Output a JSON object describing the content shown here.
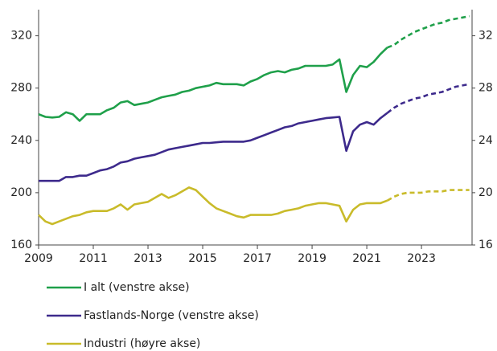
{
  "chart_data": {
    "type": "line",
    "x": [
      2009,
      2009.25,
      2009.5,
      2009.75,
      2010,
      2010.25,
      2010.5,
      2010.75,
      2011,
      2011.25,
      2011.5,
      2011.75,
      2012,
      2012.25,
      2012.5,
      2012.75,
      2013,
      2013.25,
      2013.5,
      2013.75,
      2014,
      2014.25,
      2014.5,
      2014.75,
      2015,
      2015.25,
      2015.5,
      2015.75,
      2016,
      2016.25,
      2016.5,
      2016.75,
      2017,
      2017.25,
      2017.5,
      2017.75,
      2018,
      2018.25,
      2018.5,
      2018.75,
      2019,
      2019.25,
      2019.5,
      2019.75,
      2020,
      2020.25,
      2020.5,
      2020.75,
      2021,
      2021.25,
      2021.5,
      2021.75,
      2022,
      2022.25,
      2022.5,
      2022.75,
      2023,
      2023.25,
      2023.5,
      2023.75,
      2024,
      2024.25,
      2024.5,
      2024.75
    ],
    "series": [
      {
        "name": "I alt (venstre akse)",
        "color": "#1fa04a",
        "values": [
          260,
          258,
          257.5,
          258,
          261.5,
          260,
          255,
          260,
          260,
          260,
          263,
          265,
          269,
          270,
          267,
          268,
          269,
          271,
          273,
          274,
          275,
          277,
          278,
          280,
          281,
          282,
          284,
          283,
          283,
          283,
          282,
          285,
          287,
          290,
          292,
          293,
          292,
          294,
          295,
          297,
          297,
          297,
          297,
          298,
          302,
          277,
          290,
          297,
          296,
          300,
          306,
          311,
          313,
          317,
          320,
          323,
          325,
          327,
          329,
          330,
          332,
          333,
          334,
          335
        ]
      },
      {
        "name": "Fastlands-Norge (venstre akse)",
        "color": "#3d2a8c",
        "values": [
          209,
          209,
          209,
          209,
          212,
          212,
          213,
          213,
          215,
          217,
          218,
          220,
          223,
          224,
          226,
          227,
          228,
          229,
          231,
          233,
          234,
          235,
          236,
          237,
          238,
          238,
          238.5,
          239,
          239,
          239,
          239,
          240,
          242,
          244,
          246,
          248,
          250,
          251,
          253,
          254,
          255,
          256,
          257,
          257.5,
          258,
          232,
          247,
          252,
          254,
          252,
          257,
          261,
          265,
          268,
          270,
          272,
          273,
          275,
          276,
          277,
          279,
          281,
          282,
          283
        ]
      },
      {
        "name": "Industri (høyre akse)",
        "color": "#c9bb2a",
        "axis": "y2",
        "values": [
          18.3,
          17.8,
          17.6,
          17.8,
          18,
          18.2,
          18.3,
          18.5,
          18.6,
          18.6,
          18.6,
          18.8,
          19.1,
          18.7,
          19.1,
          19.2,
          19.3,
          19.6,
          19.9,
          19.6,
          19.8,
          20.1,
          20.4,
          20.2,
          19.7,
          19.2,
          18.8,
          18.6,
          18.4,
          18.2,
          18.1,
          18.3,
          18.3,
          18.3,
          18.3,
          18.4,
          18.6,
          18.7,
          18.8,
          19.0,
          19.1,
          19.2,
          19.2,
          19.1,
          19.0,
          17.8,
          18.7,
          19.1,
          19.2,
          19.2,
          19.2,
          19.4,
          19.7,
          19.9,
          20.0,
          20.0,
          20.0,
          20.1,
          20.1,
          20.1,
          20.2,
          20.2,
          20.2,
          20.2
        ]
      }
    ],
    "forecast_from": 2021.75,
    "xlim": [
      2009,
      2024.85
    ],
    "xticks": [
      2009,
      2011,
      2013,
      2015,
      2017,
      2019,
      2021,
      2023
    ],
    "ylim": [
      160,
      340
    ],
    "yticks": [
      160,
      200,
      240,
      280,
      320
    ],
    "y2lim": [
      16,
      34
    ],
    "y2ticks": [
      16,
      20,
      24,
      28,
      32
    ]
  }
}
